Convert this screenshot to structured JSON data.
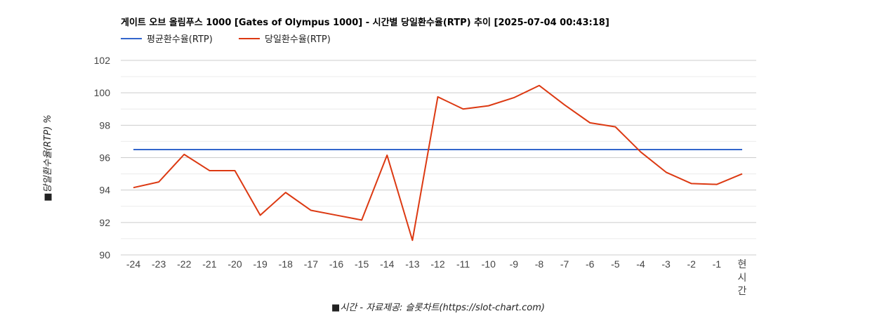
{
  "chart_data": {
    "type": "line",
    "title": "게이트 오브 올림푸스 1000 [Gates of Olympus 1000] - 시간별 당일환수율(RTP) 추이 [2025-07-04 00:43:18]",
    "xlabel": "■시간 - 자료제공: 슬롯차트(https://slot-chart.com)",
    "ylabel": "■당일환수율(RTP) %",
    "categories": [
      "-24",
      "-23",
      "-22",
      "-21",
      "-20",
      "-19",
      "-18",
      "-17",
      "-16",
      "-15",
      "-14",
      "-13",
      "-12",
      "-11",
      "-10",
      "-9",
      "-8",
      "-7",
      "-6",
      "-5",
      "-4",
      "-3",
      "-2",
      "-1",
      "현시간"
    ],
    "ylim": [
      90,
      102
    ],
    "yticks": [
      90,
      92,
      94,
      96,
      98,
      100,
      102
    ],
    "legend_position": "top-left",
    "series": [
      {
        "name": "평균환수율(RTP)",
        "color": "#3366cc",
        "values": [
          96.5,
          96.5,
          96.5,
          96.5,
          96.5,
          96.5,
          96.5,
          96.5,
          96.5,
          96.5,
          96.5,
          96.5,
          96.5,
          96.5,
          96.5,
          96.5,
          96.5,
          96.5,
          96.5,
          96.5,
          96.5,
          96.5,
          96.5,
          96.5,
          96.5
        ]
      },
      {
        "name": "당일환수율(RTP)",
        "color": "#dc3912",
        "values": [
          94.15,
          94.5,
          96.2,
          95.2,
          95.2,
          92.45,
          93.85,
          92.75,
          92.45,
          92.15,
          96.15,
          90.9,
          99.75,
          99.0,
          99.2,
          99.7,
          100.45,
          99.25,
          98.15,
          97.9,
          96.35,
          95.1,
          94.4,
          94.35,
          95.0
        ]
      }
    ]
  }
}
